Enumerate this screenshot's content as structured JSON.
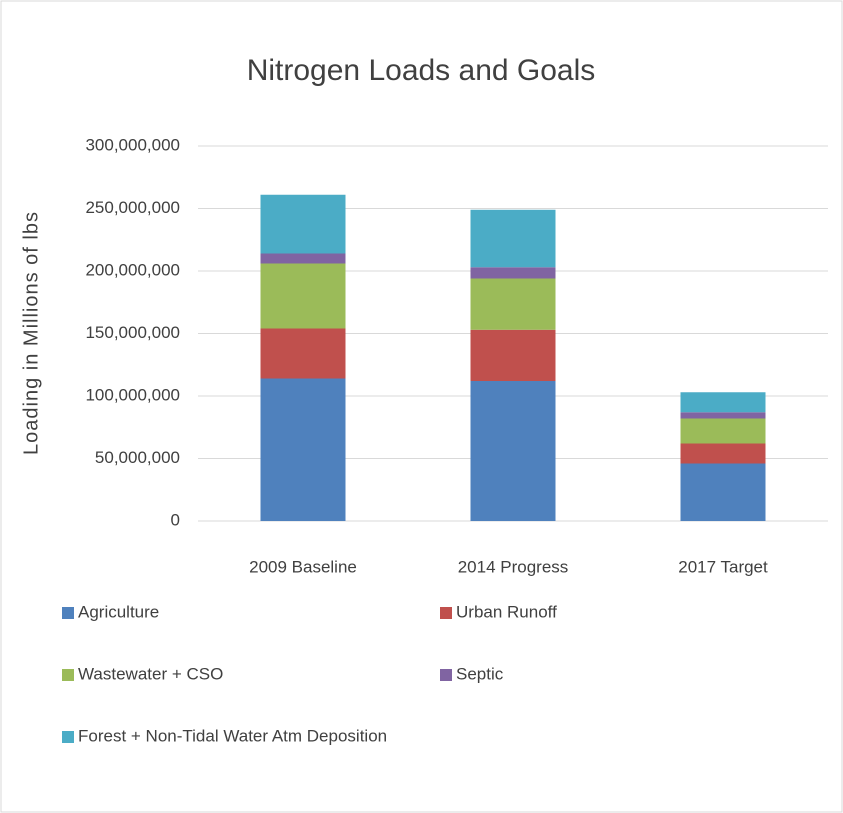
{
  "chart_data": {
    "type": "stacked_bar",
    "title": "Nitrogen Loads and Goals",
    "y_label": "Loading in Millions of lbs",
    "categories": [
      "2009 Baseline",
      "2014 Progress",
      "2017  Target"
    ],
    "series": [
      {
        "name": "Agriculture",
        "color": "#4f81bd",
        "values": [
          114000000,
          112000000,
          46000000
        ]
      },
      {
        "name": "Urban Runoff",
        "color": "#c0504d",
        "values": [
          40000000,
          41000000,
          16000000
        ]
      },
      {
        "name": "Wastewater + CSO",
        "color": "#9bbb59",
        "values": [
          52000000,
          41000000,
          20000000
        ]
      },
      {
        "name": "Septic",
        "color": "#8064a2",
        "values": [
          8000000,
          9000000,
          5000000
        ]
      },
      {
        "name": "Forest + Non-Tidal Water Atm Deposition",
        "color": "#4bacc6",
        "values": [
          47000000,
          46000000,
          16000000
        ]
      }
    ],
    "ylim": [
      0,
      300000000
    ],
    "yticks": [
      0,
      {
        "value": 50000000,
        "label": "50,000,000"
      },
      {
        "value": 100000000,
        "label": "100,000,000"
      },
      {
        "value": 150000000,
        "label": "150,000,000"
      },
      {
        "value": 200000000,
        "label": "200,000,000"
      },
      {
        "value": 250000000,
        "label": "250,000,000"
      },
      {
        "value": 300000000,
        "label": "300,000,000"
      }
    ],
    "grid": true
  }
}
